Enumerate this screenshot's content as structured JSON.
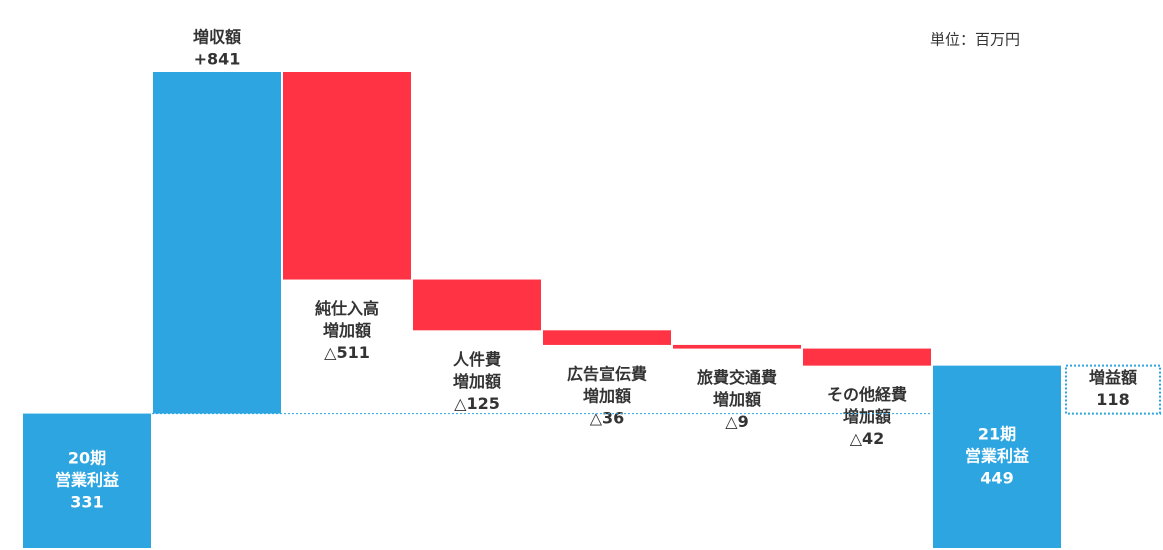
{
  "chart_data": {
    "type": "waterfall",
    "note": "単位：百万円",
    "categories": [
      [
        "20期",
        "営業利益"
      ],
      [
        "増収額"
      ],
      [
        "純仕入高",
        "増加額"
      ],
      [
        "人件費",
        "増加額"
      ],
      [
        "広告宣伝費",
        "増加額"
      ],
      [
        "旅費交通費",
        "増加額"
      ],
      [
        "その他経費",
        "増加額"
      ],
      [
        "21期",
        "営業利益"
      ]
    ],
    "values": [
      331,
      841,
      -511,
      -125,
      -36,
      -9,
      -42,
      449
    ],
    "value_labels": [
      "331",
      "+841",
      "△511",
      "△125",
      "△36",
      "△9",
      "△42",
      "449"
    ],
    "is_total": [
      true,
      false,
      false,
      false,
      false,
      false,
      false,
      true
    ],
    "colors": {
      "total": "#2da5e1",
      "increase": "#2da5e1",
      "decrease": "#ff3344"
    },
    "annotation": {
      "label": "増益額",
      "value": 118,
      "value_label": "118"
    }
  }
}
